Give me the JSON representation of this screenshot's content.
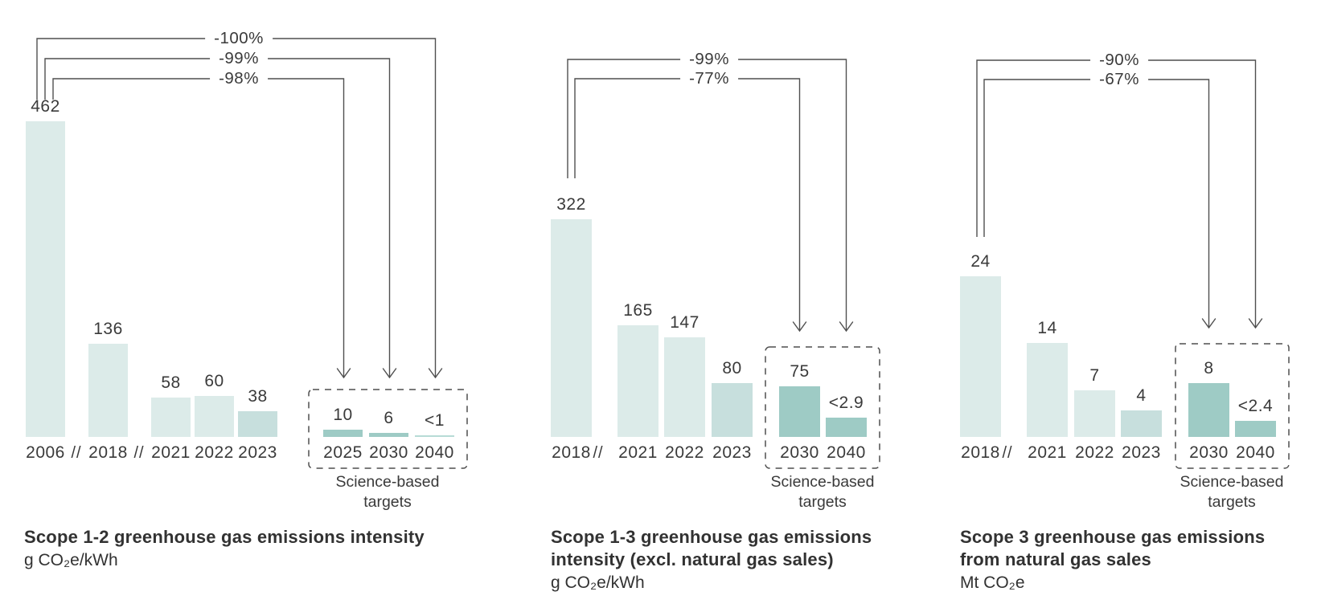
{
  "page": {
    "background": "#ffffff"
  },
  "colors": {
    "bar_light": "#dcebe9",
    "bar_medium": "#c7dfdd",
    "bar_dark": "#9ecbc5",
    "bar_thin": "#b7dbd6",
    "line": "#4f4f4f",
    "text": "#3a3a3a",
    "title": "#323232"
  },
  "chart_data": [
    {
      "type": "bar",
      "title_lines": [
        "Scope 1-2 greenhouse gas emissions intensity"
      ],
      "unit": "g CO₂e/kWh",
      "ylabel": "g CO₂e/kWh",
      "xlabel": "",
      "ylim": [
        0,
        462
      ],
      "grid": false,
      "sbt": [
        "Science-based",
        "targets"
      ],
      "axis_breaks": [
        "//",
        "//"
      ],
      "bars": [
        {
          "year": "2006",
          "label": "462",
          "value": 462,
          "target": false
        },
        {
          "year": "2018",
          "label": "136",
          "value": 136,
          "target": false
        },
        {
          "year": "2021",
          "label": "58",
          "value": 58,
          "target": false
        },
        {
          "year": "2022",
          "label": "60",
          "value": 60,
          "target": false
        },
        {
          "year": "2023",
          "label": "38",
          "value": 38,
          "target": false
        },
        {
          "year": "2025",
          "label": "10",
          "value": 10,
          "target": true
        },
        {
          "year": "2030",
          "label": "6",
          "value": 6,
          "target": true
        },
        {
          "year": "2040",
          "label": "<1",
          "value": 1,
          "target": true
        }
      ],
      "arrows": [
        {
          "label": "-100%",
          "from_year": "2006",
          "to_year": "2040"
        },
        {
          "label": "-99%",
          "from_year": "2006",
          "to_year": "2030"
        },
        {
          "label": "-98%",
          "from_year": "2006",
          "to_year": "2025"
        }
      ]
    },
    {
      "type": "bar",
      "title_lines": [
        "Scope 1-3 greenhouse gas emissions",
        "intensity (excl. natural gas sales)"
      ],
      "unit": "g CO₂e/kWh",
      "ylabel": "g CO₂e/kWh",
      "xlabel": "",
      "ylim": [
        0,
        322
      ],
      "grid": false,
      "sbt": [
        "Science-based",
        "targets"
      ],
      "axis_breaks": [
        "//"
      ],
      "bars": [
        {
          "year": "2018",
          "label": "322",
          "value": 322,
          "target": false
        },
        {
          "year": "2021",
          "label": "165",
          "value": 165,
          "target": false
        },
        {
          "year": "2022",
          "label": "147",
          "value": 147,
          "target": false
        },
        {
          "year": "2023",
          "label": "80",
          "value": 80,
          "target": false
        },
        {
          "year": "2030",
          "label": "75",
          "value": 75,
          "target": true
        },
        {
          "year": "2040",
          "label": "<2.9",
          "value": 2.9,
          "target": true
        }
      ],
      "arrows": [
        {
          "label": "-99%",
          "from_year": "2018",
          "to_year": "2040"
        },
        {
          "label": "-77%",
          "from_year": "2018",
          "to_year": "2030"
        }
      ]
    },
    {
      "type": "bar",
      "title_lines": [
        "Scope 3 greenhouse gas emissions",
        "from natural gas sales"
      ],
      "unit": "Mt CO₂e",
      "ylabel": "Mt CO₂e",
      "xlabel": "",
      "ylim": [
        0,
        24
      ],
      "grid": false,
      "sbt": [
        "Science-based",
        "targets"
      ],
      "axis_breaks": [
        "//"
      ],
      "bars": [
        {
          "year": "2018",
          "label": "24",
          "value": 24,
          "target": false
        },
        {
          "year": "2021",
          "label": "14",
          "value": 14,
          "target": false
        },
        {
          "year": "2022",
          "label": "7",
          "value": 7,
          "target": false
        },
        {
          "year": "2023",
          "label": "4",
          "value": 4,
          "target": false
        },
        {
          "year": "2030",
          "label": "8",
          "value": 8,
          "target": true
        },
        {
          "year": "2040",
          "label": "<2.4",
          "value": 2.4,
          "target": true
        }
      ],
      "arrows": [
        {
          "label": "-90%",
          "from_year": "2018",
          "to_year": "2040"
        },
        {
          "label": "-67%",
          "from_year": "2018",
          "to_year": "2030"
        }
      ]
    }
  ]
}
